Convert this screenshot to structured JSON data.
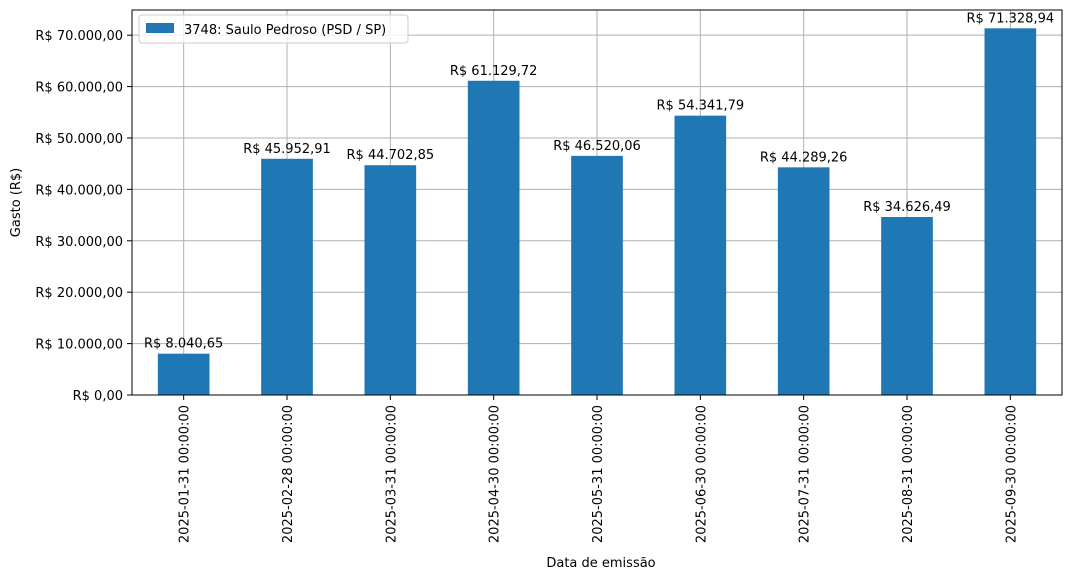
{
  "chart_data": {
    "type": "bar",
    "categories": [
      "2025-01-31 00:00:00",
      "2025-02-28 00:00:00",
      "2025-03-31 00:00:00",
      "2025-04-30 00:00:00",
      "2025-05-31 00:00:00",
      "2025-06-30 00:00:00",
      "2025-07-31 00:00:00",
      "2025-08-31 00:00:00",
      "2025-09-30 00:00:00"
    ],
    "series": [
      {
        "name": "3748: Saulo Pedroso (PSD / SP)",
        "values": [
          8040.65,
          45952.91,
          44702.85,
          61129.72,
          46520.06,
          54341.79,
          44289.26,
          34626.49,
          71328.94
        ],
        "data_labels": [
          "R$ 8.040,65",
          "R$ 45.952,91",
          "R$ 44.702,85",
          "R$ 61.129,72",
          "R$ 46.520,06",
          "R$ 54.341,79",
          "R$ 44.289,26",
          "R$ 34.626,49",
          "R$ 71.328,94"
        ],
        "color": "#1f77b4"
      }
    ],
    "xlabel": "Data de emissão",
    "ylabel": "Gasto (R$)",
    "ylim": [
      0,
      74896.39
    ],
    "yticks": [
      0,
      10000,
      20000,
      30000,
      40000,
      50000,
      60000,
      70000
    ],
    "ytick_labels": [
      "R$ 0,00",
      "R$ 10.000,00",
      "R$ 20.000,00",
      "R$ 30.000,00",
      "R$ 40.000,00",
      "R$ 50.000,00",
      "R$ 60.000,00",
      "R$ 70.000,00"
    ],
    "grid": true,
    "legend_position": "top-left",
    "grid_color": "#b0b0b0"
  }
}
